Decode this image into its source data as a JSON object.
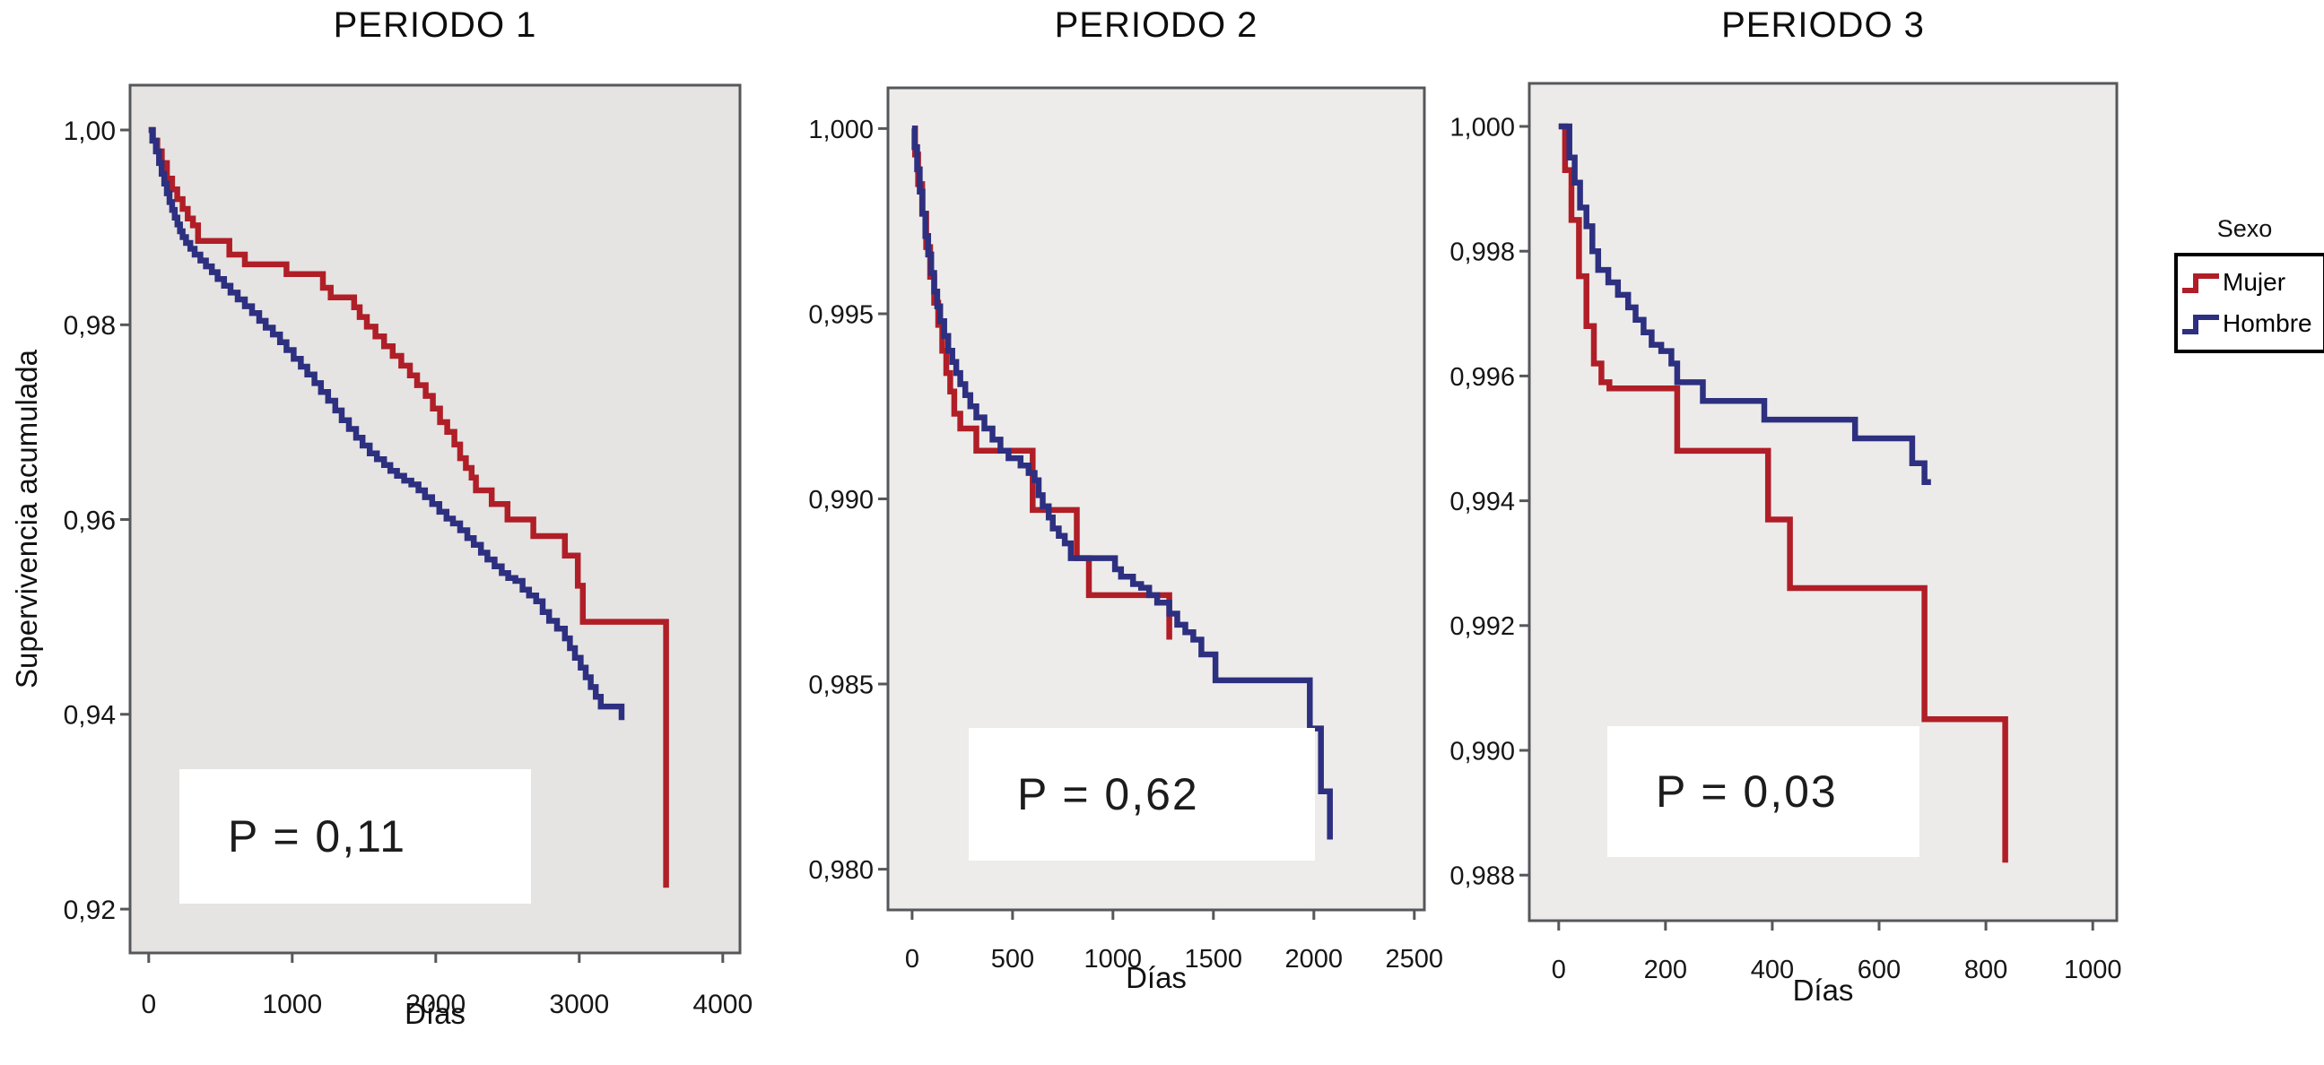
{
  "figure": {
    "ylabel": "Supervivencia acumulada",
    "legend": {
      "title": "Sexo",
      "entries": [
        {
          "label": "Mujer",
          "color": "#b01e27"
        },
        {
          "label": "Hombre",
          "color": "#2d2f80"
        }
      ]
    }
  },
  "chart_data": [
    {
      "type": "line",
      "subtype": "kaplan-meier-step",
      "title": "PERIODO 1",
      "xlabel": "Días",
      "ylabel": "Supervivencia acumulada",
      "p_label": "P = 0,11",
      "bg": "#e5e4e2",
      "xlim": [
        -130,
        4120
      ],
      "ylim": [
        0.9155,
        1.0046
      ],
      "x_ticks": [
        {
          "v": 0,
          "label": "0"
        },
        {
          "v": 1000,
          "label": "1000"
        },
        {
          "v": 2000,
          "label": "2000"
        },
        {
          "v": 3000,
          "label": "3000"
        },
        {
          "v": 4000,
          "label": "4000"
        }
      ],
      "y_ticks": [
        {
          "v": 1.0,
          "label": "1,00"
        },
        {
          "v": 0.98,
          "label": "0,98"
        },
        {
          "v": 0.96,
          "label": "0,96"
        },
        {
          "v": 0.94,
          "label": "0,94"
        },
        {
          "v": 0.92,
          "label": "0,92"
        }
      ],
      "series": [
        {
          "name": "Mujer",
          "color": "#b01e27",
          "points": [
            [
              0,
              1.0
            ],
            [
              30,
              0.9989
            ],
            [
              60,
              0.9978
            ],
            [
              91,
              0.9966
            ],
            [
              127,
              0.995
            ],
            [
              163,
              0.9939
            ],
            [
              199,
              0.9929
            ],
            [
              236,
              0.9919
            ],
            [
              272,
              0.9909
            ],
            [
              308,
              0.9902
            ],
            [
              344,
              0.9886
            ],
            [
              562,
              0.9872
            ],
            [
              670,
              0.9862
            ],
            [
              960,
              0.9852
            ],
            [
              1214,
              0.9838
            ],
            [
              1268,
              0.9828
            ],
            [
              1431,
              0.9818
            ],
            [
              1470,
              0.9808
            ],
            [
              1520,
              0.9798
            ],
            [
              1580,
              0.9788
            ],
            [
              1640,
              0.9778
            ],
            [
              1700,
              0.9768
            ],
            [
              1760,
              0.9758
            ],
            [
              1820,
              0.9748
            ],
            [
              1870,
              0.9738
            ],
            [
              1930,
              0.9727
            ],
            [
              1980,
              0.9714
            ],
            [
              2030,
              0.97
            ],
            [
              2080,
              0.969
            ],
            [
              2130,
              0.9677
            ],
            [
              2170,
              0.9663
            ],
            [
              2210,
              0.9653
            ],
            [
              2250,
              0.9643
            ],
            [
              2280,
              0.963
            ],
            [
              2390,
              0.9616
            ],
            [
              2500,
              0.96
            ],
            [
              2680,
              0.9583
            ],
            [
              2900,
              0.9563
            ],
            [
              2990,
              0.9532
            ],
            [
              3025,
              0.9495
            ],
            [
              3605,
              0.9222
            ]
          ]
        },
        {
          "name": "Hombre",
          "color": "#2d2f80",
          "points": [
            [
              0,
              1.0
            ],
            [
              25,
              0.9989
            ],
            [
              50,
              0.9978
            ],
            [
              72,
              0.9966
            ],
            [
              90,
              0.9955
            ],
            [
              108,
              0.9945
            ],
            [
              126,
              0.9935
            ],
            [
              145,
              0.9926
            ],
            [
              163,
              0.9918
            ],
            [
              181,
              0.991
            ],
            [
              200,
              0.9903
            ],
            [
              218,
              0.9896
            ],
            [
              236,
              0.989
            ],
            [
              260,
              0.9884
            ],
            [
              290,
              0.9878
            ],
            [
              320,
              0.9872
            ],
            [
              360,
              0.9866
            ],
            [
              399,
              0.986
            ],
            [
              440,
              0.9854
            ],
            [
              480,
              0.9847
            ],
            [
              525,
              0.984
            ],
            [
              570,
              0.9833
            ],
            [
              620,
              0.9826
            ],
            [
              670,
              0.9819
            ],
            [
              720,
              0.9812
            ],
            [
              770,
              0.9804
            ],
            [
              815,
              0.9797
            ],
            [
              865,
              0.979
            ],
            [
              915,
              0.9782
            ],
            [
              960,
              0.9774
            ],
            [
              1010,
              0.9765
            ],
            [
              1060,
              0.9757
            ],
            [
              1105,
              0.9749
            ],
            [
              1155,
              0.974
            ],
            [
              1200,
              0.9731
            ],
            [
              1250,
              0.9722
            ],
            [
              1300,
              0.9712
            ],
            [
              1345,
              0.9702
            ],
            [
              1395,
              0.9693
            ],
            [
              1445,
              0.9684
            ],
            [
              1490,
              0.9676
            ],
            [
              1540,
              0.9668
            ],
            [
              1590,
              0.9662
            ],
            [
              1640,
              0.9656
            ],
            [
              1684,
              0.965
            ],
            [
              1730,
              0.9645
            ],
            [
              1780,
              0.964
            ],
            [
              1830,
              0.9636
            ],
            [
              1880,
              0.963
            ],
            [
              1925,
              0.9623
            ],
            [
              1975,
              0.9616
            ],
            [
              2025,
              0.9608
            ],
            [
              2075,
              0.9601
            ],
            [
              2120,
              0.9596
            ],
            [
              2170,
              0.9589
            ],
            [
              2220,
              0.9581
            ],
            [
              2265,
              0.9574
            ],
            [
              2315,
              0.9566
            ],
            [
              2360,
              0.9559
            ],
            [
              2410,
              0.9552
            ],
            [
              2460,
              0.9545
            ],
            [
              2505,
              0.954
            ],
            [
              2555,
              0.9537
            ],
            [
              2605,
              0.9528
            ],
            [
              2650,
              0.9522
            ],
            [
              2700,
              0.9516
            ],
            [
              2745,
              0.9505
            ],
            [
              2790,
              0.9496
            ],
            [
              2845,
              0.9488
            ],
            [
              2900,
              0.9478
            ],
            [
              2935,
              0.9468
            ],
            [
              2970,
              0.9458
            ],
            [
              3010,
              0.9448
            ],
            [
              3045,
              0.9438
            ],
            [
              3080,
              0.9428
            ],
            [
              3115,
              0.9418
            ],
            [
              3150,
              0.9408
            ],
            [
              3295,
              0.9394
            ]
          ]
        }
      ]
    },
    {
      "type": "line",
      "subtype": "kaplan-meier-step",
      "title": "PERIODO 2",
      "xlabel": "Días",
      "ylabel": "",
      "p_label": "P = 0,62",
      "bg": "#edecea",
      "xlim": [
        -120,
        2550
      ],
      "ylim": [
        0.9789,
        1.0011
      ],
      "x_ticks": [
        {
          "v": 0,
          "label": "0"
        },
        {
          "v": 500,
          "label": "500"
        },
        {
          "v": 1000,
          "label": "1000"
        },
        {
          "v": 1500,
          "label": "1500"
        },
        {
          "v": 2000,
          "label": "2000"
        },
        {
          "v": 2500,
          "label": "2500"
        }
      ],
      "y_ticks": [
        {
          "v": 1.0,
          "label": "1,000"
        },
        {
          "v": 0.995,
          "label": "0,995"
        },
        {
          "v": 0.99,
          "label": "0,990"
        },
        {
          "v": 0.985,
          "label": "0,985"
        },
        {
          "v": 0.98,
          "label": "0,980"
        }
      ],
      "series": [
        {
          "name": "Mujer",
          "color": "#b01e27",
          "points": [
            [
              0,
              1.0
            ],
            [
              15,
              0.9993
            ],
            [
              30,
              0.9985
            ],
            [
              50,
              0.9977
            ],
            [
              70,
              0.9968
            ],
            [
              90,
              0.996
            ],
            [
              110,
              0.9953
            ],
            [
              130,
              0.9947
            ],
            [
              150,
              0.994
            ],
            [
              170,
              0.9934
            ],
            [
              190,
              0.9929
            ],
            [
              210,
              0.9923
            ],
            [
              240,
              0.9919
            ],
            [
              320,
              0.9913
            ],
            [
              600,
              0.9897
            ],
            [
              820,
              0.9884
            ],
            [
              880,
              0.9874
            ],
            [
              1280,
              0.9862
            ]
          ]
        },
        {
          "name": "Hombre",
          "color": "#2d2f80",
          "points": [
            [
              0,
              1.0
            ],
            [
              12,
              0.9995
            ],
            [
              25,
              0.9989
            ],
            [
              38,
              0.9983
            ],
            [
              52,
              0.9977
            ],
            [
              66,
              0.9971
            ],
            [
              80,
              0.9966
            ],
            [
              95,
              0.9961
            ],
            [
              110,
              0.9956
            ],
            [
              125,
              0.9952
            ],
            [
              140,
              0.9948
            ],
            [
              160,
              0.9944
            ],
            [
              180,
              0.994
            ],
            [
              200,
              0.9937
            ],
            [
              220,
              0.9934
            ],
            [
              240,
              0.9931
            ],
            [
              265,
              0.9928
            ],
            [
              290,
              0.9925
            ],
            [
              320,
              0.9922
            ],
            [
              360,
              0.9919
            ],
            [
              400,
              0.9916
            ],
            [
              440,
              0.9913
            ],
            [
              480,
              0.9911
            ],
            [
              540,
              0.9909
            ],
            [
              580,
              0.9907
            ],
            [
              610,
              0.9905
            ],
            [
              630,
              0.9901
            ],
            [
              650,
              0.9898
            ],
            [
              680,
              0.9895
            ],
            [
              700,
              0.9892
            ],
            [
              730,
              0.989
            ],
            [
              760,
              0.9888
            ],
            [
              790,
              0.9884
            ],
            [
              1010,
              0.9881
            ],
            [
              1040,
              0.9879
            ],
            [
              1100,
              0.9877
            ],
            [
              1140,
              0.9876
            ],
            [
              1180,
              0.9874
            ],
            [
              1220,
              0.9872
            ],
            [
              1280,
              0.9869
            ],
            [
              1320,
              0.9866
            ],
            [
              1360,
              0.9864
            ],
            [
              1400,
              0.9862
            ],
            [
              1440,
              0.9858
            ],
            [
              1510,
              0.9851
            ],
            [
              1980,
              0.9838
            ],
            [
              2035,
              0.9821
            ],
            [
              2080,
              0.9808
            ]
          ]
        }
      ]
    },
    {
      "type": "line",
      "subtype": "kaplan-meier-step",
      "title": "PERIODO 3",
      "xlabel": "Días",
      "ylabel": "",
      "p_label": "P = 0,03",
      "bg": "#ecebe9",
      "xlim": [
        -55,
        1045
      ],
      "ylim": [
        0.98727,
        1.00069
      ],
      "x_ticks": [
        {
          "v": 0,
          "label": "0"
        },
        {
          "v": 200,
          "label": "200"
        },
        {
          "v": 400,
          "label": "400"
        },
        {
          "v": 600,
          "label": "600"
        },
        {
          "v": 800,
          "label": "800"
        },
        {
          "v": 1000,
          "label": "1000"
        }
      ],
      "y_ticks": [
        {
          "v": 1.0,
          "label": "1,000"
        },
        {
          "v": 0.998,
          "label": "0,998"
        },
        {
          "v": 0.996,
          "label": "0,996"
        },
        {
          "v": 0.994,
          "label": "0,994"
        },
        {
          "v": 0.992,
          "label": "0,992"
        },
        {
          "v": 0.99,
          "label": "0,990"
        },
        {
          "v": 0.988,
          "label": "0,988"
        }
      ],
      "series": [
        {
          "name": "Mujer",
          "color": "#b01e27",
          "points": [
            [
              0,
              1.0
            ],
            [
              12,
              0.9993
            ],
            [
              24,
              0.9985
            ],
            [
              38,
              0.9976
            ],
            [
              52,
              0.9968
            ],
            [
              66,
              0.9962
            ],
            [
              80,
              0.9959
            ],
            [
              95,
              0.9958
            ],
            [
              222,
              0.9948
            ],
            [
              392,
              0.9937
            ],
            [
              433,
              0.9926
            ],
            [
              685,
              0.9905
            ],
            [
              836,
              0.9882
            ]
          ]
        },
        {
          "name": "Hombre",
          "color": "#2d2f80",
          "points": [
            [
              0,
              1.0
            ],
            [
              20,
              0.9995
            ],
            [
              30,
              0.9991
            ],
            [
              40,
              0.9987
            ],
            [
              52,
              0.9984
            ],
            [
              63,
              0.998
            ],
            [
              74,
              0.9977
            ],
            [
              93,
              0.9975
            ],
            [
              111,
              0.9973
            ],
            [
              130,
              0.9971
            ],
            [
              144,
              0.9969
            ],
            [
              159,
              0.9967
            ],
            [
              174,
              0.9965
            ],
            [
              192,
              0.9964
            ],
            [
              211,
              0.9962
            ],
            [
              222,
              0.9959
            ],
            [
              270,
              0.9956
            ],
            [
              385,
              0.9953
            ],
            [
              555,
              0.995
            ],
            [
              662,
              0.9946
            ],
            [
              685,
              0.9943
            ],
            [
              697,
              0.9943
            ]
          ]
        }
      ]
    }
  ]
}
